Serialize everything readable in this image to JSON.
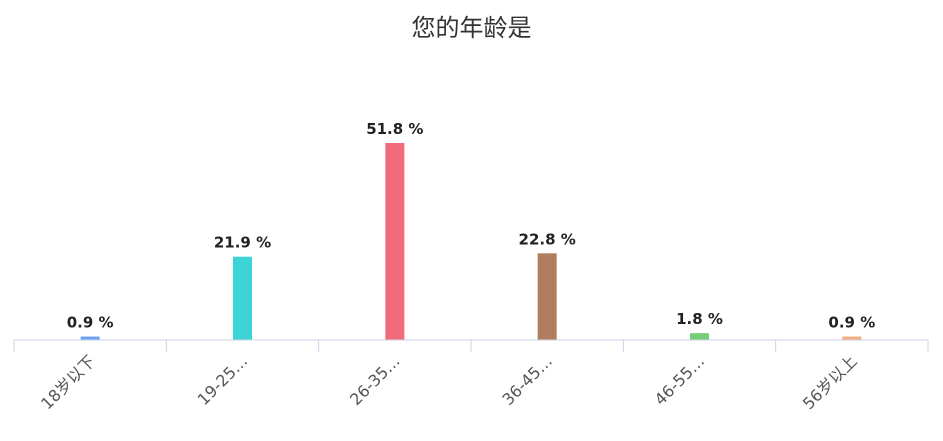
{
  "chart_data": {
    "type": "bar",
    "title": "您的年龄是",
    "categories": [
      "18岁以下",
      "19-25…",
      "26-35…",
      "36-45…",
      "46-55…",
      "56岁以上"
    ],
    "values": [
      0.9,
      21.9,
      51.8,
      22.8,
      1.8,
      0.9
    ],
    "value_labels": [
      "0.9 %",
      "21.9 %",
      "51.8 %",
      "22.8 %",
      "1.8 %",
      "0.9 %"
    ],
    "colors": [
      "#6aa0f0",
      "#3dd4d8",
      "#f26b7a",
      "#b07e5e",
      "#72cf78",
      "#f7aa7e"
    ],
    "unit": "%",
    "xlabel": "",
    "ylabel": "",
    "ylim": [
      0,
      51.8
    ],
    "grid": false,
    "legend": "none"
  }
}
